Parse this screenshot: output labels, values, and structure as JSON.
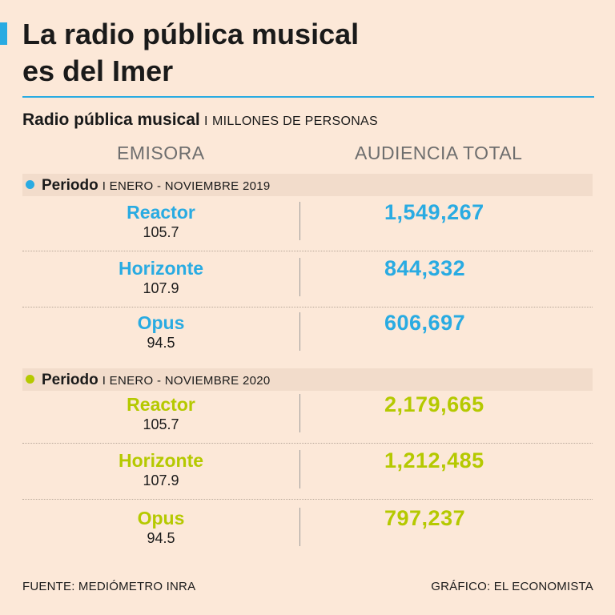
{
  "title_line1": "La radio pública musical",
  "title_line2": "es del Imer",
  "subtitle_main": "Radio pública musical",
  "subtitle_separator": "I",
  "subtitle_unit": "MILLONES DE PERSONAS",
  "header_left": "EMISORA",
  "header_right": "AUDIENCIA TOTAL",
  "colors": {
    "accent_2019": "#29abe2",
    "accent_2020": "#b5c900",
    "background": "#fce8d8",
    "band": "#f2dccb"
  },
  "chart_data": {
    "type": "table",
    "title": "La radio pública musical es del Imer",
    "subtitle": "Radio pública musical I MILLONES DE PERSONAS",
    "columns": [
      "EMISORA",
      "AUDIENCIA TOTAL"
    ],
    "groups": [
      {
        "period_label": "Periodo",
        "period_range": "I ENERO - NOVIEMBRE 2019",
        "color": "#29abe2",
        "rows": [
          {
            "name": "Reactor",
            "freq": "105.7",
            "value_text": "1,549,267",
            "value": 1549267
          },
          {
            "name": "Horizonte",
            "freq": "107.9",
            "value_text": "844,332",
            "value": 844332
          },
          {
            "name": "Opus",
            "freq": "94.5",
            "value_text": "606,697",
            "value": 606697
          }
        ]
      },
      {
        "period_label": "Periodo",
        "period_range": "I ENERO - NOVIEMBRE 2020",
        "color": "#b5c900",
        "rows": [
          {
            "name": "Reactor",
            "freq": "105.7",
            "value_text": "2,179,665",
            "value": 2179665
          },
          {
            "name": "Horizonte",
            "freq": "107.9",
            "value_text": "1,212,485",
            "value": 1212485
          },
          {
            "name": "Opus",
            "freq": "94.5",
            "value_text": "797,237",
            "value": 797237
          }
        ]
      }
    ]
  },
  "footer_source": "FUENTE: MEDIÓMETRO INRA",
  "footer_credit": "GRÁFICO: EL ECONOMISTA"
}
